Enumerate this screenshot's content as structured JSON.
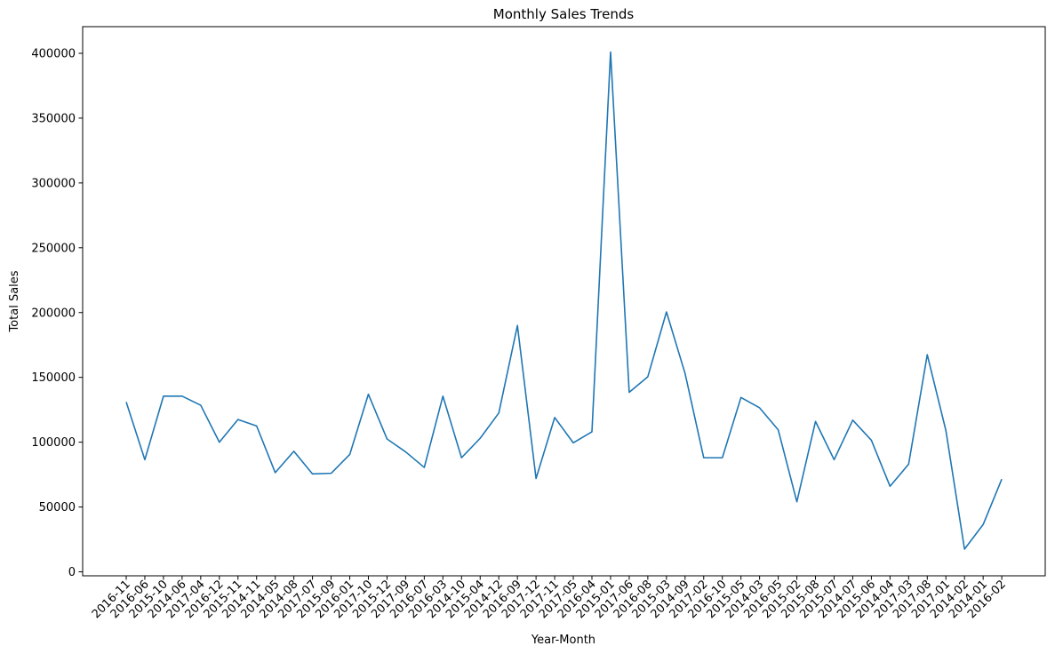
{
  "chart_data": {
    "type": "line",
    "title": "Monthly Sales Trends",
    "xlabel": "Year-Month",
    "ylabel": "Total Sales",
    "ylim": [
      0,
      420000
    ],
    "yticks": [
      0,
      50000,
      100000,
      150000,
      200000,
      250000,
      300000,
      350000,
      400000
    ],
    "ytick_labels": [
      "0",
      "50000",
      "100000",
      "150000",
      "200000",
      "250000",
      "300000",
      "350000",
      "400000"
    ],
    "grid": false,
    "line_color": "#1f77b4",
    "categories": [
      "2016-11",
      "2016-06",
      "2015-10",
      "2014-06",
      "2017-04",
      "2016-12",
      "2015-11",
      "2014-11",
      "2014-05",
      "2014-08",
      "2017-07",
      "2015-09",
      "2016-01",
      "2017-10",
      "2015-12",
      "2017-09",
      "2016-07",
      "2016-03",
      "2014-10",
      "2015-04",
      "2014-12",
      "2016-09",
      "2017-12",
      "2017-11",
      "2017-05",
      "2016-04",
      "2015-01",
      "2017-06",
      "2016-08",
      "2015-03",
      "2014-09",
      "2017-02",
      "2016-10",
      "2015-05",
      "2014-03",
      "2016-05",
      "2015-02",
      "2015-08",
      "2015-07",
      "2014-07",
      "2015-06",
      "2014-04",
      "2017-03",
      "2017-08",
      "2017-01",
      "2014-02",
      "2014-01",
      "2016-02"
    ],
    "values": [
      131000,
      86500,
      135500,
      135500,
      128500,
      100000,
      117500,
      112500,
      76500,
      93000,
      75500,
      76000,
      90500,
      137000,
      102500,
      92500,
      80500,
      135500,
      88000,
      103000,
      122500,
      190000,
      72000,
      119000,
      99500,
      108000,
      401000,
      138500,
      150500,
      200500,
      153000,
      88000,
      88000,
      134500,
      126500,
      109500,
      54000,
      116000,
      86500,
      117000,
      101500,
      66000,
      83000,
      167500,
      109000,
      17500,
      36500,
      71500
    ]
  }
}
